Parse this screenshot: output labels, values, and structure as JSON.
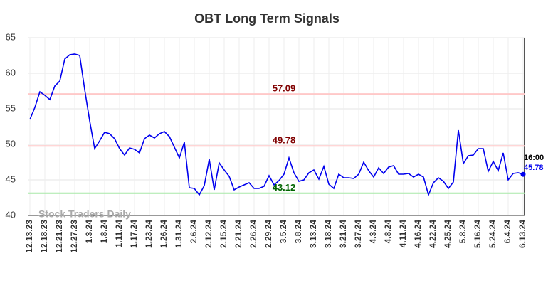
{
  "chart_data": {
    "type": "line",
    "title": "OBT Long Term Signals",
    "watermark": "Stock Traders Daily",
    "categories": [
      "12.13.23",
      null,
      null,
      "12.18.23",
      null,
      null,
      "12.21.23",
      null,
      null,
      "12.27.23",
      null,
      null,
      "1.3.24",
      null,
      null,
      "1.8.24",
      null,
      null,
      "1.11.24",
      null,
      null,
      "1.17.24",
      null,
      null,
      "1.23.24",
      null,
      null,
      "1.26.24",
      null,
      null,
      "1.31.24",
      null,
      null,
      "2.6.24",
      null,
      null,
      "2.12.24",
      null,
      null,
      "2.15.24",
      null,
      null,
      "2.21.24",
      null,
      null,
      "2.26.24",
      null,
      null,
      "2.29.24",
      null,
      null,
      "3.5.24",
      null,
      null,
      "3.8.24",
      null,
      null,
      "3.13.24",
      null,
      null,
      "3.18.24",
      null,
      null,
      "3.21.24",
      null,
      null,
      "3.27.24",
      null,
      null,
      "4.3.24",
      null,
      null,
      "4.8.24",
      null,
      null,
      "4.11.24",
      null,
      null,
      "4.16.24",
      null,
      null,
      "4.22.24",
      null,
      null,
      "4.25.24",
      null,
      null,
      "5.8.24",
      null,
      null,
      "5.16.24",
      null,
      null,
      "5.24.24",
      null,
      null,
      "6.4.24",
      null,
      null,
      "6.13.24"
    ],
    "series": [
      {
        "color": "#0000ee",
        "values": [
          53.5,
          55.2,
          57.4,
          56.9,
          56.3,
          58.2,
          58.9,
          62.0,
          62.6,
          62.7,
          62.5,
          57.7,
          53.3,
          49.4,
          50.5,
          51.7,
          51.5,
          50.8,
          49.4,
          48.5,
          49.5,
          49.3,
          48.8,
          50.8,
          51.3,
          50.9,
          51.5,
          51.8,
          51.1,
          49.6,
          48.1,
          50.3,
          43.9,
          43.8,
          42.9,
          44.2,
          47.9,
          43.6,
          47.4,
          46.4,
          45.5,
          43.6,
          44.0,
          44.3,
          44.6,
          43.8,
          43.8,
          44.1,
          45.6,
          44.3,
          44.9,
          45.8,
          48.1,
          46.0,
          44.8,
          45.0,
          46.0,
          46.4,
          45.1,
          46.9,
          44.4,
          43.8,
          45.8,
          45.3,
          45.3,
          45.2,
          45.8,
          47.5,
          46.3,
          45.4,
          46.7,
          45.9,
          46.8,
          47.0,
          45.8,
          45.8,
          45.9,
          45.4,
          45.8,
          45.4,
          42.9,
          44.6,
          45.3,
          44.8,
          43.8,
          44.7,
          52.0,
          47.3,
          48.4,
          48.5,
          49.4,
          49.4,
          46.2,
          47.6,
          46.3,
          48.8,
          45.0,
          45.9,
          46.0,
          45.78
        ]
      }
    ],
    "last_time_label": "16:00",
    "hlines": [
      {
        "value": 57.09,
        "color": "#ffc8c8",
        "label_color": "#800000"
      },
      {
        "value": 49.78,
        "color": "#ffc8c8",
        "label_color": "#800000"
      },
      {
        "value": 43.12,
        "color": "#a8e8a8",
        "label_color": "#006400"
      }
    ],
    "ylim": [
      40,
      65
    ],
    "yticks": [
      40,
      45,
      50,
      55,
      60,
      65
    ],
    "grid": true
  }
}
